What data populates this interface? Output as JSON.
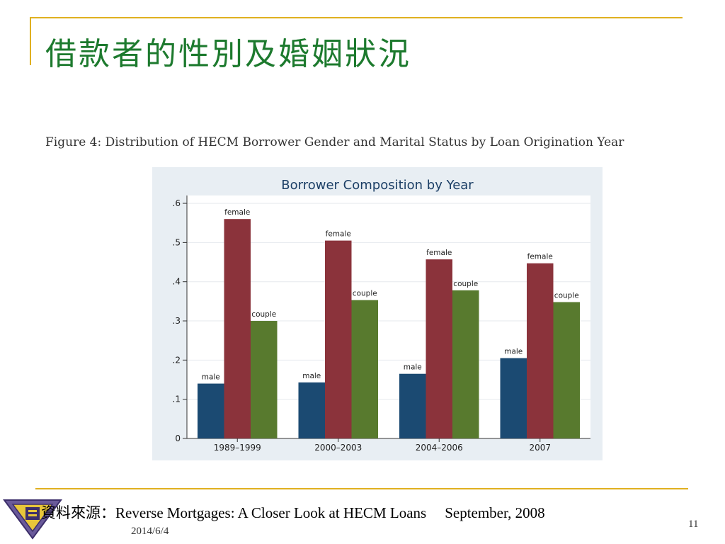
{
  "slide": {
    "title": "借款者的性別及婚姻狀況",
    "figure_caption": "Figure 4: Distribution of HECM Borrower Gender and Marital Status by Loan Origination Year",
    "source_label": "資料來源：",
    "source_text": "Reverse Mortgages: A Closer Look at HECM Loans",
    "source_date": "September, 2008",
    "footer_date": "2014/6/4",
    "page_number": "11"
  },
  "colors": {
    "title": "#1d7a2e",
    "frame": "#e0b020",
    "panel": "#e8eef3",
    "male": "#1b4a72",
    "female": "#8b333b",
    "couple": "#587a2e"
  },
  "chart_data": {
    "type": "bar",
    "title": "Borrower Composition by Year",
    "xlabel": "",
    "ylabel": "",
    "categories": [
      "1989–1999",
      "2000–2003",
      "2004–2006",
      "2007"
    ],
    "series": [
      {
        "name": "male",
        "values": [
          0.14,
          0.143,
          0.165,
          0.205
        ]
      },
      {
        "name": "female",
        "values": [
          0.56,
          0.505,
          0.457,
          0.447
        ]
      },
      {
        "name": "couple",
        "values": [
          0.3,
          0.353,
          0.378,
          0.348
        ]
      }
    ],
    "ylim": [
      0,
      0.62
    ],
    "yticks": [
      0,
      0.1,
      0.2,
      0.3,
      0.4,
      0.5,
      0.6
    ],
    "ytick_labels": [
      "0",
      ".1",
      ".2",
      ".3",
      ".4",
      ".5",
      ".6"
    ],
    "grid": true,
    "legend": "none",
    "bar_labels": true
  }
}
